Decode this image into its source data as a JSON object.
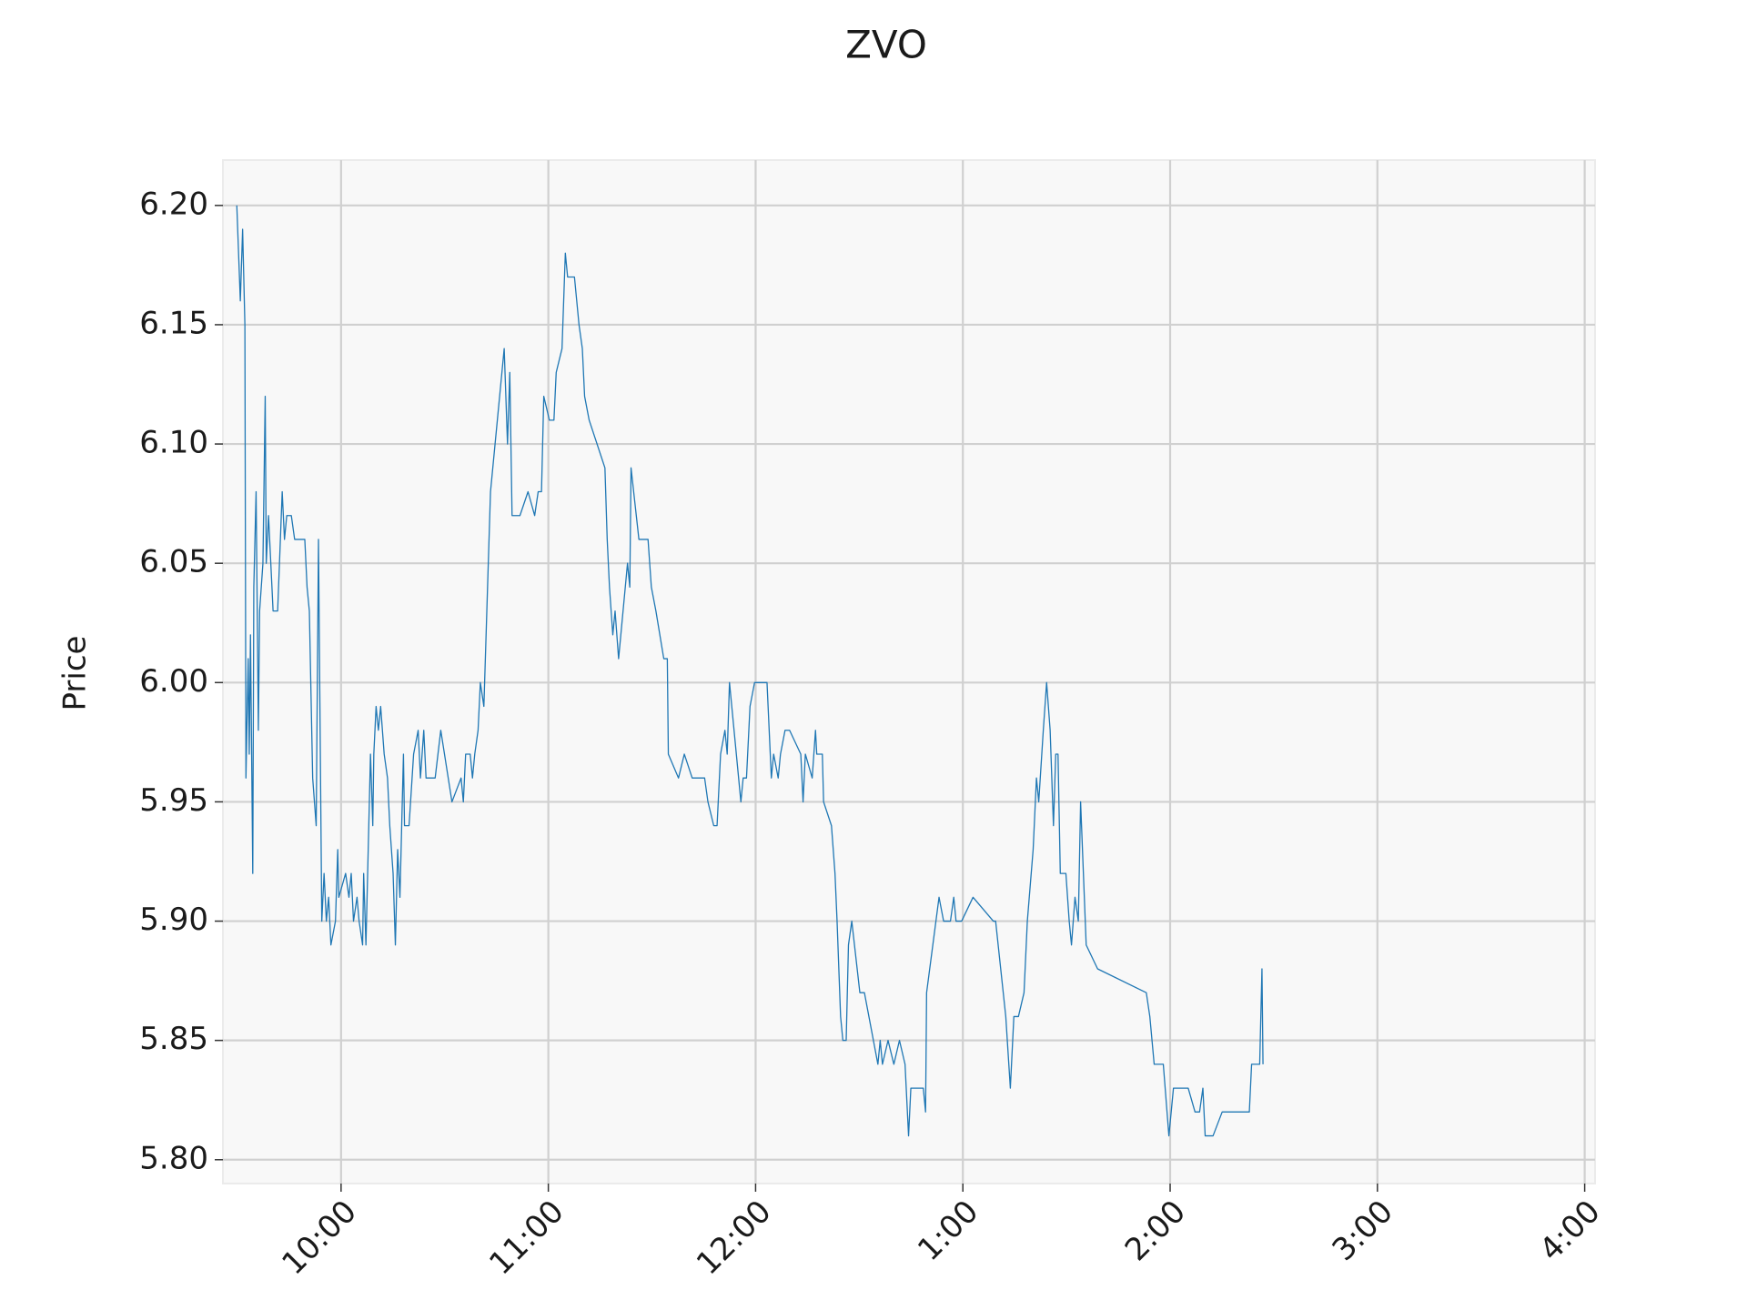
{
  "chart_data": {
    "type": "line",
    "title": "ZVO",
    "y_label": "Price",
    "color": "#1f77b4",
    "grid": true,
    "xlim": [
      9.43,
      16.05
    ],
    "ylim": [
      5.79,
      6.219
    ],
    "xticks": [
      {
        "value": 10,
        "label": "10:00"
      },
      {
        "value": 11,
        "label": "11:00"
      },
      {
        "value": 12,
        "label": "12:00"
      },
      {
        "value": 13,
        "label": "1:00"
      },
      {
        "value": 14,
        "label": "2:00"
      },
      {
        "value": 15,
        "label": "3:00"
      },
      {
        "value": 16,
        "label": "4:00"
      }
    ],
    "yticks": [
      {
        "value": 5.8,
        "label": "5.80"
      },
      {
        "value": 5.85,
        "label": "5.85"
      },
      {
        "value": 5.9,
        "label": "5.90"
      },
      {
        "value": 5.95,
        "label": "5.95"
      },
      {
        "value": 6.0,
        "label": "6.00"
      },
      {
        "value": 6.05,
        "label": "6.05"
      },
      {
        "value": 6.1,
        "label": "6.10"
      },
      {
        "value": 6.15,
        "label": "6.15"
      },
      {
        "value": 6.2,
        "label": "6.20"
      }
    ],
    "x": [
      9.497,
      9.514,
      9.525,
      9.536,
      9.541,
      9.552,
      9.557,
      9.563,
      9.574,
      9.579,
      9.59,
      9.601,
      9.607,
      9.623,
      9.634,
      9.639,
      9.65,
      9.661,
      9.672,
      9.694,
      9.716,
      9.727,
      9.738,
      9.76,
      9.776,
      9.825,
      9.836,
      9.847,
      9.863,
      9.88,
      9.891,
      9.907,
      9.918,
      9.929,
      9.94,
      9.951,
      9.973,
      9.984,
      9.989,
      10.022,
      10.038,
      10.049,
      10.06,
      10.077,
      10.087,
      10.104,
      10.109,
      10.12,
      10.131,
      10.142,
      10.153,
      10.158,
      10.169,
      10.18,
      10.191,
      10.208,
      10.224,
      10.235,
      10.251,
      10.262,
      10.273,
      10.284,
      10.301,
      10.306,
      10.328,
      10.35,
      10.372,
      10.383,
      10.399,
      10.41,
      10.454,
      10.481,
      10.535,
      10.579,
      10.59,
      10.601,
      10.623,
      10.634,
      10.645,
      10.661,
      10.672,
      10.689,
      10.721,
      10.787,
      10.803,
      10.814,
      10.825,
      10.863,
      10.902,
      10.934,
      10.951,
      10.967,
      10.978,
      11.005,
      11.027,
      11.038,
      11.066,
      11.082,
      11.093,
      11.126,
      11.148,
      11.164,
      11.175,
      11.197,
      11.273,
      11.284,
      11.295,
      11.311,
      11.322,
      11.339,
      11.382,
      11.393,
      11.399,
      11.437,
      11.481,
      11.497,
      11.519,
      11.557,
      11.574,
      11.579,
      11.628,
      11.656,
      11.694,
      11.754,
      11.77,
      11.798,
      11.814,
      11.831,
      11.852,
      11.863,
      11.874,
      11.929,
      11.94,
      11.956,
      11.973,
      11.995,
      12.055,
      12.076,
      12.087,
      12.109,
      12.12,
      12.142,
      12.164,
      12.218,
      12.229,
      12.24,
      12.273,
      12.289,
      12.295,
      12.322,
      12.328,
      12.366,
      12.383,
      12.393,
      12.41,
      12.421,
      12.437,
      12.448,
      12.464,
      12.503,
      12.525,
      12.59,
      12.601,
      12.612,
      12.639,
      12.667,
      12.694,
      12.721,
      12.738,
      12.749,
      12.809,
      12.82,
      12.825,
      12.885,
      12.907,
      12.94,
      12.956,
      12.967,
      12.994,
      13.049,
      13.147,
      13.158,
      13.207,
      13.229,
      13.246,
      13.268,
      13.295,
      13.311,
      13.339,
      13.355,
      13.366,
      13.388,
      13.404,
      13.421,
      13.437,
      13.448,
      13.459,
      13.47,
      13.497,
      13.513,
      13.524,
      13.541,
      13.557,
      13.568,
      13.595,
      13.65,
      13.885,
      13.902,
      13.923,
      13.967,
      13.994,
      14.016,
      14.087,
      14.12,
      14.142,
      14.158,
      14.169,
      14.207,
      14.251,
      14.382,
      14.393,
      14.432,
      14.443,
      14.448
    ],
    "values": [
      6.2,
      6.16,
      6.19,
      6.15,
      5.96,
      6.01,
      5.97,
      6.02,
      5.92,
      6.04,
      6.08,
      5.98,
      6.03,
      6.05,
      6.12,
      6.05,
      6.07,
      6.05,
      6.03,
      6.03,
      6.08,
      6.06,
      6.07,
      6.07,
      6.06,
      6.06,
      6.04,
      6.03,
      5.96,
      5.94,
      6.06,
      5.9,
      5.92,
      5.9,
      5.91,
      5.89,
      5.9,
      5.93,
      5.91,
      5.92,
      5.91,
      5.92,
      5.9,
      5.91,
      5.9,
      5.89,
      5.92,
      5.89,
      5.93,
      5.97,
      5.94,
      5.97,
      5.99,
      5.98,
      5.99,
      5.97,
      5.96,
      5.94,
      5.92,
      5.89,
      5.93,
      5.91,
      5.97,
      5.94,
      5.94,
      5.97,
      5.98,
      5.96,
      5.98,
      5.96,
      5.96,
      5.98,
      5.95,
      5.96,
      5.95,
      5.97,
      5.97,
      5.96,
      5.97,
      5.98,
      6.0,
      5.99,
      6.08,
      6.14,
      6.1,
      6.13,
      6.07,
      6.07,
      6.08,
      6.07,
      6.08,
      6.08,
      6.12,
      6.11,
      6.11,
      6.13,
      6.14,
      6.18,
      6.17,
      6.17,
      6.15,
      6.14,
      6.12,
      6.11,
      6.09,
      6.06,
      6.04,
      6.02,
      6.03,
      6.01,
      6.05,
      6.04,
      6.09,
      6.06,
      6.06,
      6.04,
      6.03,
      6.01,
      6.01,
      5.97,
      5.96,
      5.97,
      5.96,
      5.96,
      5.95,
      5.94,
      5.94,
      5.97,
      5.98,
      5.97,
      6.0,
      5.95,
      5.96,
      5.96,
      5.99,
      6.0,
      6.0,
      5.96,
      5.97,
      5.96,
      5.97,
      5.98,
      5.98,
      5.97,
      5.95,
      5.97,
      5.96,
      5.98,
      5.97,
      5.97,
      5.95,
      5.94,
      5.92,
      5.9,
      5.86,
      5.85,
      5.85,
      5.89,
      5.9,
      5.87,
      5.87,
      5.84,
      5.85,
      5.84,
      5.85,
      5.84,
      5.85,
      5.84,
      5.81,
      5.83,
      5.83,
      5.82,
      5.87,
      5.91,
      5.9,
      5.9,
      5.91,
      5.9,
      5.9,
      5.91,
      5.9,
      5.9,
      5.86,
      5.83,
      5.86,
      5.86,
      5.87,
      5.9,
      5.93,
      5.96,
      5.95,
      5.98,
      6.0,
      5.98,
      5.94,
      5.97,
      5.97,
      5.92,
      5.92,
      5.9,
      5.89,
      5.91,
      5.9,
      5.95,
      5.89,
      5.88,
      5.87,
      5.86,
      5.84,
      5.84,
      5.81,
      5.83,
      5.83,
      5.82,
      5.82,
      5.83,
      5.81,
      5.81,
      5.82,
      5.82,
      5.84,
      5.84,
      5.88,
      5.84
    ]
  }
}
